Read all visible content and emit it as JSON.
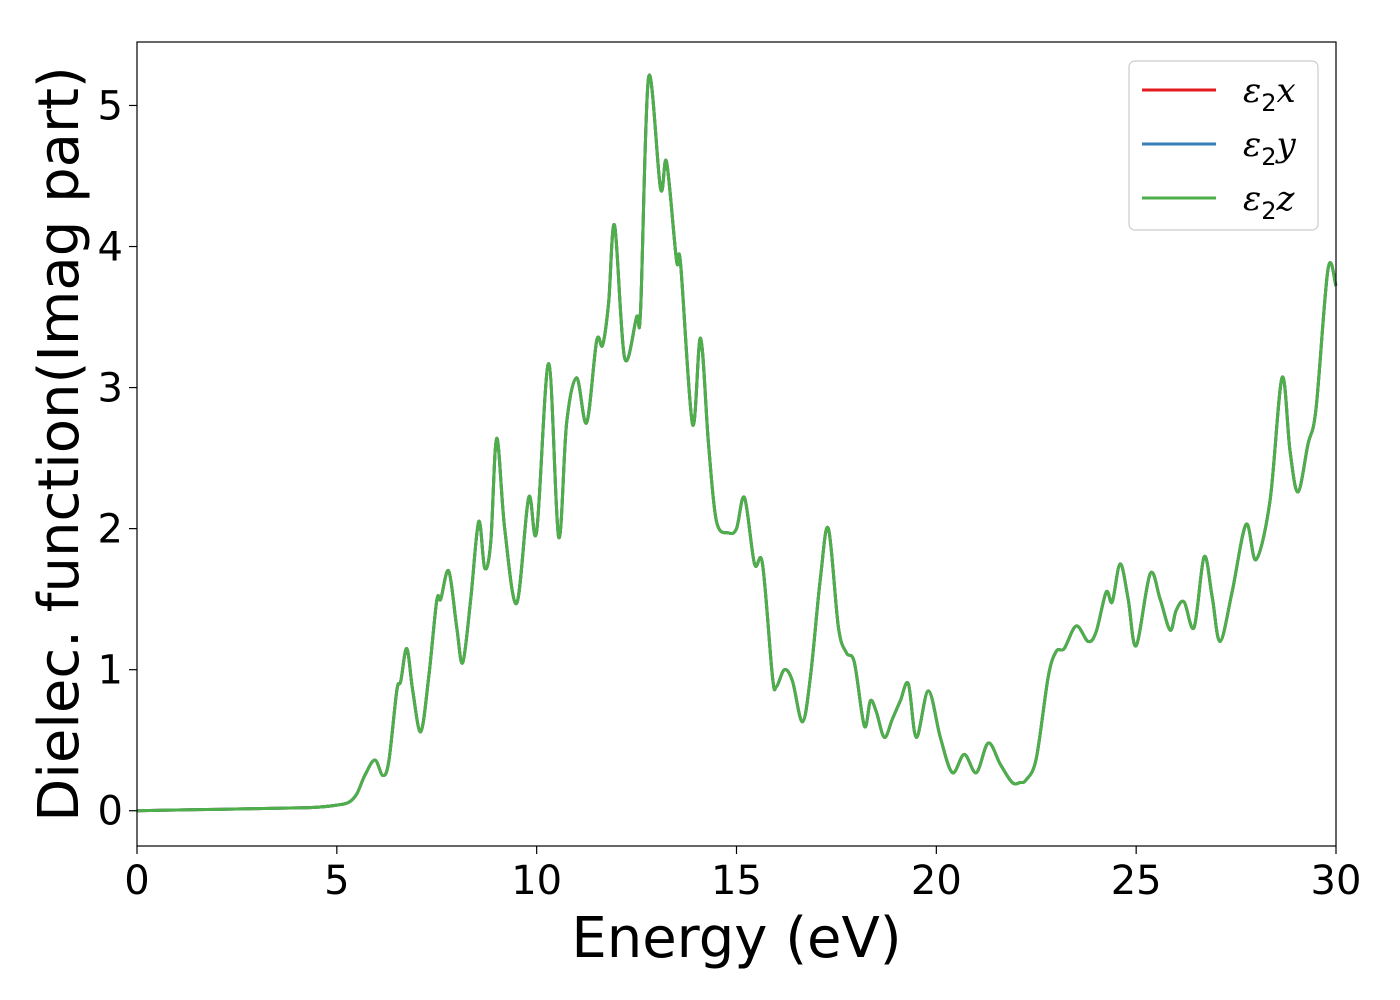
{
  "chart_data": {
    "type": "line",
    "xlabel": "Energy (eV)",
    "ylabel": "Dielec. function(Imag part)",
    "xlim": [
      0,
      30
    ],
    "ylim": [
      -0.25,
      5.45
    ],
    "xticks": [
      "0",
      "5",
      "10",
      "15",
      "20",
      "25",
      "30"
    ],
    "yticks": [
      "0",
      "1",
      "2",
      "3",
      "4",
      "5"
    ],
    "grid": false,
    "legend_position": "top-right",
    "series": [
      {
        "name_base": "ε",
        "name_sub": "2",
        "name_var": "x",
        "color": "#e41a1c",
        "values_ref": "shared"
      },
      {
        "name_base": "ε",
        "name_sub": "2",
        "name_var": "y",
        "color": "#377eb8",
        "values_ref": "shared"
      },
      {
        "name_base": "ε",
        "name_sub": "2",
        "name_var": "z",
        "color": "#4daf4a",
        "values_ref": "shared"
      }
    ],
    "x": [
      0,
      1,
      2,
      3,
      4,
      4.5,
      5,
      5.3,
      5.5,
      5.7,
      5.95,
      6.15,
      6.3,
      6.5,
      6.6,
      6.75,
      6.9,
      7.1,
      7.3,
      7.5,
      7.6,
      7.8,
      8.0,
      8.15,
      8.35,
      8.55,
      8.7,
      8.85,
      9.0,
      9.2,
      9.5,
      9.8,
      10.0,
      10.3,
      10.55,
      10.75,
      11.0,
      11.25,
      11.5,
      11.65,
      11.8,
      11.95,
      12.2,
      12.5,
      12.6,
      12.8,
      13.1,
      13.25,
      13.5,
      13.6,
      13.9,
      14.1,
      14.3,
      14.5,
      14.8,
      15.0,
      15.2,
      15.45,
      15.65,
      15.9,
      16.0,
      16.2,
      16.4,
      16.65,
      16.85,
      17.1,
      17.3,
      17.55,
      17.75,
      17.95,
      18.2,
      18.35,
      18.5,
      18.7,
      18.9,
      19.1,
      19.3,
      19.5,
      19.8,
      20.1,
      20.4,
      20.7,
      21.0,
      21.3,
      21.6,
      21.9,
      22.1,
      22.25,
      22.5,
      22.8,
      23.0,
      23.2,
      23.5,
      23.8,
      24.0,
      24.25,
      24.4,
      24.6,
      24.8,
      25.0,
      25.35,
      25.6,
      25.85,
      26.0,
      26.2,
      26.45,
      26.7,
      26.9,
      27.1,
      27.4,
      27.75,
      28.0,
      28.35,
      28.65,
      28.85,
      29.05,
      29.3,
      29.5,
      29.8,
      30.0
    ],
    "y": [
      0.0,
      0.005,
      0.01,
      0.015,
      0.02,
      0.025,
      0.04,
      0.06,
      0.12,
      0.25,
      0.36,
      0.25,
      0.35,
      0.85,
      0.92,
      1.15,
      0.85,
      0.56,
      0.95,
      1.49,
      1.5,
      1.7,
      1.3,
      1.05,
      1.5,
      2.05,
      1.72,
      1.9,
      2.64,
      2.0,
      1.47,
      2.22,
      1.98,
      3.17,
      1.94,
      2.75,
      3.07,
      2.75,
      3.33,
      3.3,
      3.6,
      4.15,
      3.21,
      3.5,
      3.55,
      5.2,
      4.41,
      4.6,
      3.9,
      3.88,
      2.74,
      3.35,
      2.6,
      2.05,
      1.97,
      2.0,
      2.22,
      1.75,
      1.75,
      0.95,
      0.88,
      1.0,
      0.92,
      0.63,
      0.95,
      1.65,
      2.0,
      1.3,
      1.12,
      1.05,
      0.6,
      0.78,
      0.7,
      0.52,
      0.65,
      0.78,
      0.9,
      0.52,
      0.85,
      0.52,
      0.27,
      0.4,
      0.27,
      0.48,
      0.33,
      0.2,
      0.2,
      0.22,
      0.37,
      0.95,
      1.13,
      1.15,
      1.31,
      1.2,
      1.27,
      1.55,
      1.48,
      1.75,
      1.5,
      1.17,
      1.68,
      1.5,
      1.28,
      1.42,
      1.48,
      1.3,
      1.8,
      1.52,
      1.2,
      1.55,
      2.03,
      1.78,
      2.2,
      3.07,
      2.55,
      2.26,
      2.6,
      2.85,
      3.84,
      3.72
    ]
  }
}
